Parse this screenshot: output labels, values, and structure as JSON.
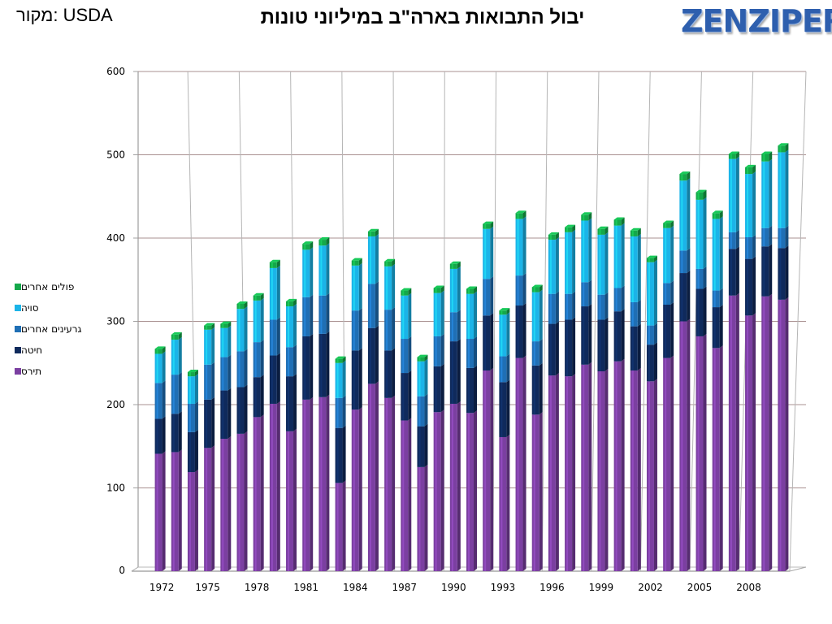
{
  "source_label": "מקור: USDA",
  "title": "יבול התבואות בארה\"ב במיליוני טונות",
  "logo_text": "ZENZIPER",
  "chart_data": {
    "type": "bar",
    "stacked": true,
    "ylim": [
      0,
      600
    ],
    "yticks": [
      0,
      100,
      200,
      300,
      400,
      500,
      600
    ],
    "x": [
      1972,
      1973,
      1974,
      1975,
      1976,
      1977,
      1978,
      1979,
      1980,
      1981,
      1982,
      1983,
      1984,
      1985,
      1986,
      1987,
      1988,
      1989,
      1990,
      1991,
      1992,
      1993,
      1994,
      1995,
      1996,
      1997,
      1998,
      1999,
      2000,
      2001,
      2002,
      2003,
      2004,
      2005,
      2006,
      2007,
      2008,
      2009,
      2010
    ],
    "xtick_labels": [
      "1972",
      "1975",
      "1978",
      "1981",
      "1984",
      "1987",
      "1990",
      "1993",
      "1996",
      "1999",
      "2002",
      "2005",
      "2008"
    ],
    "xtick_years": [
      1972,
      1975,
      1978,
      1981,
      1984,
      1987,
      1990,
      1993,
      1996,
      1999,
      2002,
      2005,
      2008
    ],
    "legend_position": "left",
    "series": [
      {
        "name": "תירס",
        "color": "#7b3fa1",
        "values": [
          141,
          143,
          119,
          148,
          159,
          165,
          185,
          201,
          168,
          206,
          209,
          106,
          194,
          225,
          208,
          181,
          125,
          191,
          201,
          190,
          241,
          161,
          256,
          188,
          235,
          234,
          248,
          240,
          252,
          241,
          228,
          256,
          300,
          282,
          268,
          331,
          307,
          330,
          326
        ]
      },
      {
        "name": "חיטה",
        "color": "#0f2a5c",
        "values": [
          42,
          46,
          48,
          58,
          58,
          56,
          48,
          58,
          66,
          76,
          76,
          66,
          71,
          67,
          57,
          57,
          49,
          55,
          75,
          54,
          66,
          66,
          63,
          59,
          62,
          68,
          70,
          62,
          60,
          53,
          44,
          64,
          58,
          57,
          49,
          56,
          68,
          60,
          62
        ]
      },
      {
        "name": "גרעינים אחרים",
        "color": "#1f6fb5",
        "values": [
          43,
          47,
          34,
          42,
          40,
          43,
          42,
          43,
          35,
          47,
          46,
          36,
          48,
          53,
          49,
          41,
          36,
          36,
          35,
          35,
          44,
          31,
          36,
          29,
          36,
          31,
          29,
          30,
          28,
          29,
          23,
          26,
          27,
          24,
          20,
          20,
          26,
          22,
          24
        ]
      },
      {
        "name": "סויה",
        "color": "#1bb4e8",
        "values": [
          35,
          42,
          33,
          42,
          35,
          51,
          50,
          62,
          49,
          57,
          60,
          42,
          54,
          57,
          52,
          52,
          42,
          52,
          52,
          54,
          60,
          50,
          68,
          59,
          65,
          74,
          74,
          72,
          75,
          79,
          76,
          66,
          84,
          83,
          86,
          88,
          76,
          80,
          91
        ]
      },
      {
        "name": "פולים אחרים",
        "color": "#14a84a",
        "values": [
          6,
          6,
          5,
          5,
          5,
          6,
          6,
          7,
          6,
          7,
          7,
          5,
          6,
          6,
          6,
          6,
          5,
          6,
          6,
          6,
          6,
          5,
          7,
          6,
          6,
          6,
          7,
          7,
          7,
          7,
          5,
          6,
          8,
          9,
          7,
          6,
          8,
          9,
          8
        ]
      }
    ]
  }
}
